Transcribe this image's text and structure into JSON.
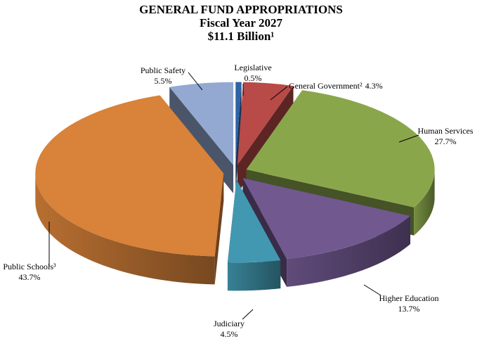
{
  "chart_data": {
    "type": "pie3d",
    "title": [
      "GENERAL FUND APPROPRIATIONS",
      "Fiscal Year 2027",
      "$11.1 Billion¹"
    ],
    "categories": [
      "Legislative",
      "General Government²",
      "Human Services",
      "Higher Education",
      "Judiciary",
      "Public Schools³",
      "Public Safety"
    ],
    "values": [
      0.5,
      4.3,
      27.7,
      13.7,
      4.5,
      43.7,
      5.5
    ],
    "value_labels": [
      "0.5%",
      "4.3%",
      "27.7%",
      "13.7%",
      "4.5%",
      "43.7%",
      "5.5%"
    ],
    "colors": [
      "#2e63a8",
      "#b84a47",
      "#8aa64b",
      "#71588f",
      "#4298b0",
      "#d8823a",
      "#94a9d1"
    ]
  }
}
